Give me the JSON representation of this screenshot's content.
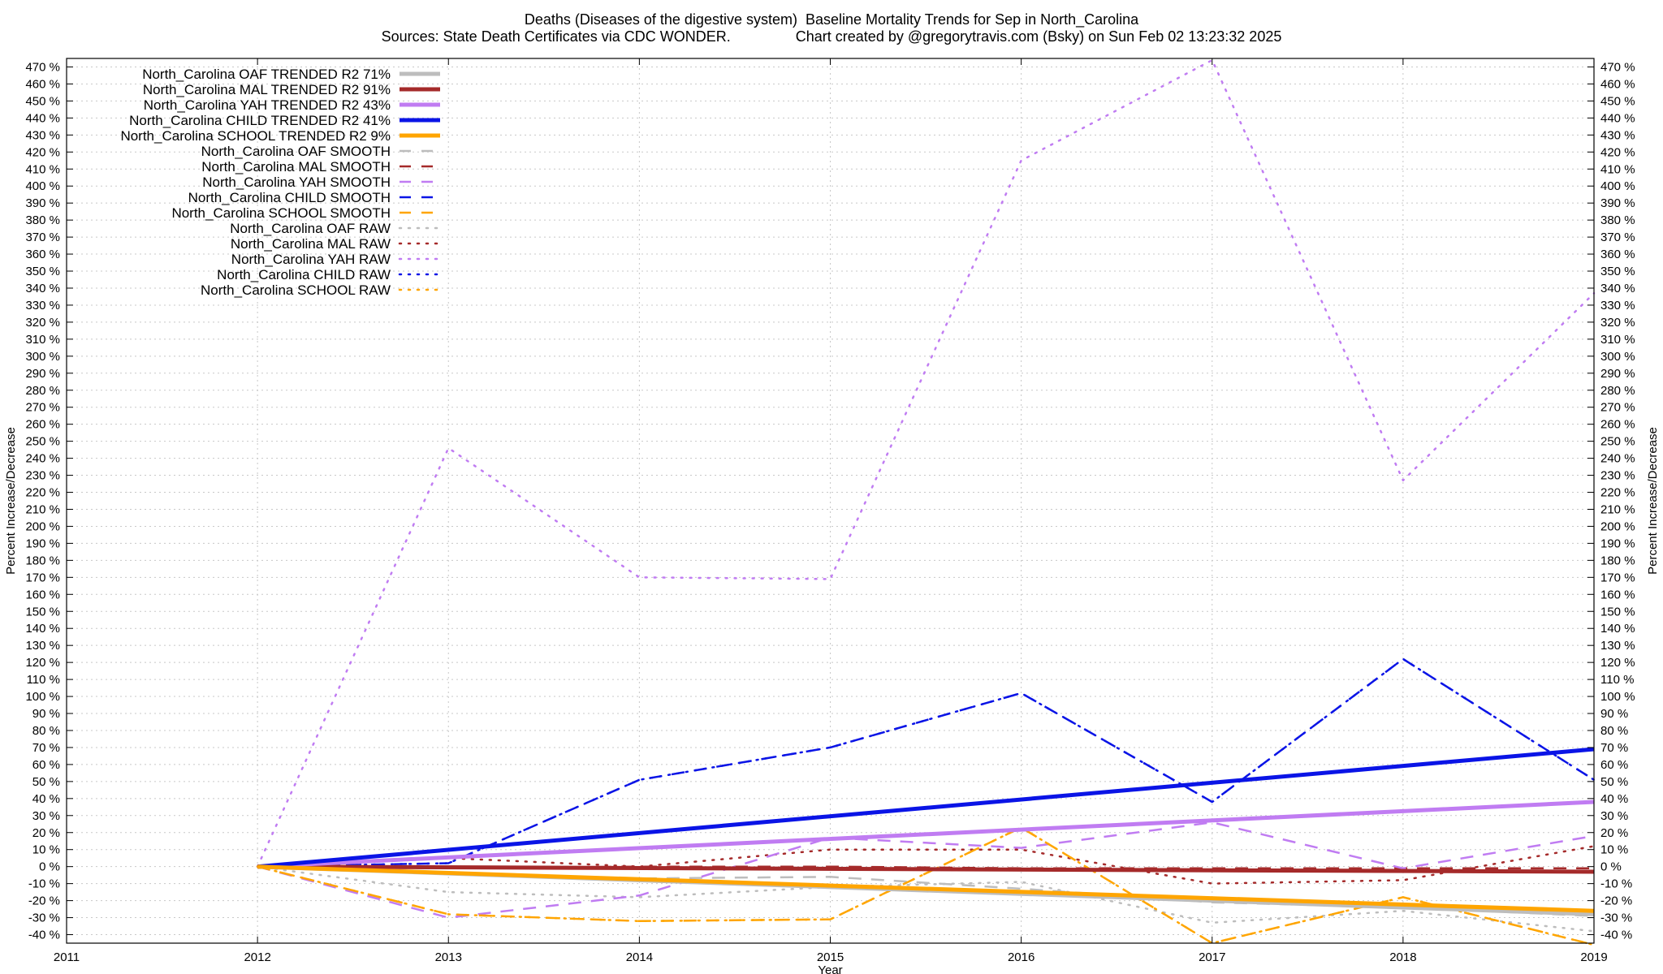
{
  "header": {
    "title": "Deaths (Diseases of the digestive system)  Baseline Mortality Trends for Sep in North_Carolina",
    "subtitle": "Sources: State Death Certificates via CDC WONDER.                Chart created by @gregorytravis.com (Bsky) on Sun Feb 02 13:23:32 2025"
  },
  "chart_data": {
    "type": "line",
    "title": "Deaths (Diseases of the digestive system)  Baseline Mortality Trends for Sep in North_Carolina",
    "xlabel": "Year",
    "ylabel": "Percent Increase/Decrease",
    "ylabel_right": "Percent Increase/Decrease",
    "xlim": [
      2011,
      2019
    ],
    "ylim": [
      -45,
      475
    ],
    "x_ticks": [
      "2011",
      "2012",
      "2013",
      "2014",
      "2015",
      "2016",
      "2017",
      "2018",
      "2019"
    ],
    "y_tick_values": [
      -40,
      -30,
      -20,
      -10,
      0,
      10,
      20,
      30,
      40,
      50,
      60,
      70,
      80,
      90,
      100,
      110,
      120,
      130,
      140,
      150,
      160,
      170,
      180,
      190,
      200,
      210,
      220,
      230,
      240,
      250,
      260,
      270,
      280,
      290,
      300,
      310,
      320,
      330,
      340,
      350,
      360,
      370,
      380,
      390,
      400,
      410,
      420,
      430,
      440,
      450,
      460,
      470
    ],
    "y_tick_suffix": " %",
    "grid": true,
    "legend_position": "top-left",
    "colors": {
      "OAF": "#bdbdbd",
      "MAL": "#a52a2a",
      "YAH": "#c07cf2",
      "CHILD": "#0a14e6",
      "SCHOOL": "#ffa500"
    },
    "series": [
      {
        "name": "North_Carolina OAF TRENDED R2  71%",
        "group": "OAF",
        "style": "trend",
        "x": [
          2012,
          2019
        ],
        "values": [
          0,
          -28
        ]
      },
      {
        "name": "North_Carolina MAL TRENDED R2  91%",
        "group": "MAL",
        "style": "trend",
        "x": [
          2012,
          2019
        ],
        "values": [
          0,
          -3
        ]
      },
      {
        "name": "North_Carolina YAH TRENDED R2  43%",
        "group": "YAH",
        "style": "trend",
        "x": [
          2012,
          2019
        ],
        "values": [
          0,
          38
        ]
      },
      {
        "name": "North_Carolina CHILD TRENDED R2  41%",
        "group": "CHILD",
        "style": "trend",
        "x": [
          2012,
          2019
        ],
        "values": [
          0,
          69
        ]
      },
      {
        "name": "North_Carolina SCHOOL TRENDED R2   9%",
        "group": "SCHOOL",
        "style": "trend",
        "x": [
          2012,
          2019
        ],
        "values": [
          0,
          -26
        ]
      },
      {
        "name": "North_Carolina OAF SMOOTH",
        "group": "OAF",
        "style": "smooth",
        "x": [
          2012,
          2013,
          2014,
          2015,
          2016,
          2017,
          2018,
          2019
        ],
        "values": [
          0,
          -4,
          -7,
          -6,
          -13,
          -21,
          -24,
          -29
        ]
      },
      {
        "name": "North_Carolina MAL SMOOTH",
        "group": "MAL",
        "style": "smooth",
        "x": [
          2012,
          2013,
          2014,
          2015,
          2016,
          2017,
          2018,
          2019
        ],
        "values": [
          0,
          -1,
          0,
          0,
          -1,
          -1,
          -1,
          -1
        ]
      },
      {
        "name": "North_Carolina YAH SMOOTH",
        "group": "YAH",
        "style": "smooth",
        "x": [
          2012,
          2013,
          2014,
          2015,
          2016,
          2017,
          2018,
          2019
        ],
        "values": [
          0,
          -30,
          -17,
          17,
          11,
          26,
          -1,
          18
        ]
      },
      {
        "name": "North_Carolina CHILD SMOOTH",
        "group": "CHILD",
        "style": "smooth",
        "x": [
          2012,
          2013,
          2014,
          2015,
          2016,
          2017,
          2018,
          2019
        ],
        "values": [
          0,
          2,
          51,
          70,
          102,
          38,
          122,
          51
        ]
      },
      {
        "name": "North_Carolina SCHOOL SMOOTH",
        "group": "SCHOOL",
        "style": "smooth",
        "x": [
          2012,
          2013,
          2014,
          2015,
          2016,
          2017,
          2018,
          2019
        ],
        "values": [
          0,
          -28,
          -32,
          -31,
          23,
          -45,
          -18,
          -46
        ]
      },
      {
        "name": "North_Carolina OAF RAW",
        "group": "OAF",
        "style": "raw",
        "x": [
          2012,
          2013,
          2014,
          2015,
          2016,
          2017,
          2018,
          2019
        ],
        "values": [
          0,
          -15,
          -18,
          -12,
          -9,
          -33,
          -26,
          -38
        ]
      },
      {
        "name": "North_Carolina MAL RAW",
        "group": "MAL",
        "style": "raw",
        "x": [
          2012,
          2013,
          2014,
          2015,
          2016,
          2017,
          2018,
          2019
        ],
        "values": [
          0,
          5,
          0,
          10,
          10,
          -10,
          -8,
          12
        ]
      },
      {
        "name": "North_Carolina YAH RAW",
        "group": "YAH",
        "style": "raw",
        "x": [
          2012,
          2013,
          2014,
          2015,
          2016,
          2017,
          2018,
          2019
        ],
        "values": [
          0,
          246,
          170,
          169,
          415,
          474,
          227,
          337
        ]
      },
      {
        "name": "North_Carolina CHILD RAW",
        "group": "CHILD",
        "style": "raw",
        "x": [
          2012,
          2013,
          2014,
          2015,
          2016,
          2017,
          2018,
          2019
        ],
        "values": [
          0,
          2,
          51,
          70,
          102,
          38,
          122,
          51
        ]
      },
      {
        "name": "North_Carolina SCHOOL RAW",
        "group": "SCHOOL",
        "style": "raw",
        "x": [
          2012,
          2013,
          2014,
          2015,
          2016,
          2017,
          2018,
          2019
        ],
        "values": [
          0,
          -28,
          -32,
          -31,
          23,
          -45,
          -18,
          -46
        ]
      }
    ]
  }
}
